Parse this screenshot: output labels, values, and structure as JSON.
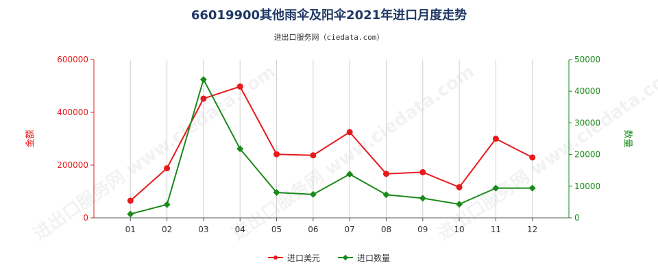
{
  "title": "66019900其他雨伞及阳伞2021年进口月度走势",
  "subtitle": "进出口服务网（ciedata.com）",
  "watermark": "进出口服务网 www.ciedata.com",
  "chart_data": {
    "type": "line",
    "categories": [
      "01",
      "02",
      "03",
      "04",
      "05",
      "06",
      "07",
      "08",
      "09",
      "10",
      "11",
      "12"
    ],
    "y_left": {
      "label": "金额",
      "ylim": [
        0,
        600000
      ],
      "ticks": [
        "0",
        "200000",
        "400000",
        "600000"
      ],
      "color": "#e8191b"
    },
    "y_right": {
      "label": "数量",
      "ylim": [
        0,
        50000
      ],
      "ticks": [
        "0",
        "10000",
        "20000",
        "30000",
        "40000",
        "50000"
      ],
      "color": "#1a8a1a"
    },
    "grid": "vertical",
    "legend_position": "bottom",
    "series": [
      {
        "name": "进口美元",
        "axis": "left",
        "color": "#e8191b",
        "marker": "circle",
        "values": [
          65000,
          188000,
          452000,
          498000,
          241000,
          237000,
          325000,
          167000,
          173000,
          116000,
          300000,
          229000
        ]
      },
      {
        "name": "进口数量",
        "axis": "right",
        "color": "#1a8a1a",
        "marker": "diamond",
        "values": [
          1200,
          4200,
          43700,
          21800,
          8000,
          7400,
          13800,
          7300,
          6200,
          4300,
          9400,
          9400
        ]
      }
    ]
  }
}
